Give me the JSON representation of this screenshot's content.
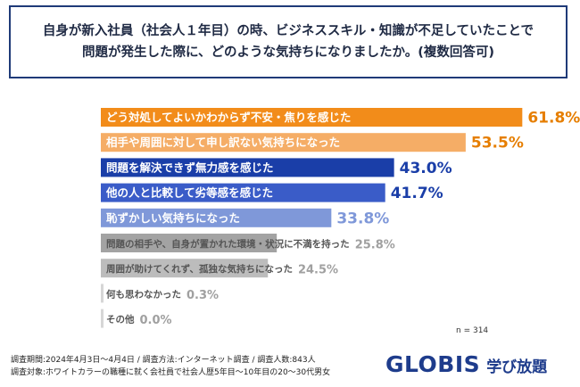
{
  "question": {
    "line1": "自身が新入社員（社会人１年目）の時、ビジネススキル・知識が不足していたことで",
    "line2": "問題が発生した際に、どのような気持ちになりましたか。(複数回答可)"
  },
  "chart_data": {
    "type": "bar",
    "orientation": "horizontal",
    "categories": [
      "どう対処してよいかわからず不安・焦りを感じた",
      "相手や周囲に対して申し訳ない気持ちになった",
      "問題を解決できず無力感を感じた",
      "他の人と比較して劣等感を感じた",
      "恥ずかしい気持ちになった",
      "問題の相手や、自身が置かれた環境・状況に不満を持った",
      "周囲が助けてくれず、孤独な気持ちになった",
      "何も思わなかった",
      "その他"
    ],
    "values": [
      61.8,
      53.5,
      43.0,
      41.7,
      33.8,
      25.8,
      24.5,
      0.3,
      0.0
    ],
    "value_labels": [
      "61.8%",
      "53.5%",
      "43.0%",
      "41.7%",
      "33.8%",
      "25.8%",
      "24.5%",
      "0.3%",
      "0.0%"
    ],
    "bar_colors": [
      "#f28c1a",
      "#f5ad66",
      "#1a3ea8",
      "#3a5cc8",
      "#7f98d9",
      "#a3a3a3",
      "#bcbcbc",
      "#d6d6d6",
      "#d6d6d6"
    ],
    "label_colors": [
      "#e67e00",
      "#e67e00",
      "#1a3ea8",
      "#1a3ea8",
      "#7f98d9",
      "#a0a0a0",
      "#a0a0a0",
      "#a0a0a0",
      "#a0a0a0"
    ],
    "text_colors": [
      "#ffffff",
      "#ffffff",
      "#ffffff",
      "#ffffff",
      "#ffffff",
      "#555555",
      "#555555",
      "#555555",
      "#555555"
    ],
    "xlim": [
      0,
      70
    ],
    "grid": false
  },
  "sample_size": "n = 314",
  "footer": {
    "line1": "調査期間:2024年4月3日〜4月4日 / 調査方法:インターネット調査 / 調査人数:843人",
    "line2": "調査対象:ホワイトカラーの職種に就く会社員で社会人歴5年目〜10年目の20〜30代男女"
  },
  "logo": {
    "brand": "GLOBIS",
    "service": "学び放題"
  },
  "colors": {
    "accent": "#1e3c8c",
    "border": "#1f3a78"
  }
}
